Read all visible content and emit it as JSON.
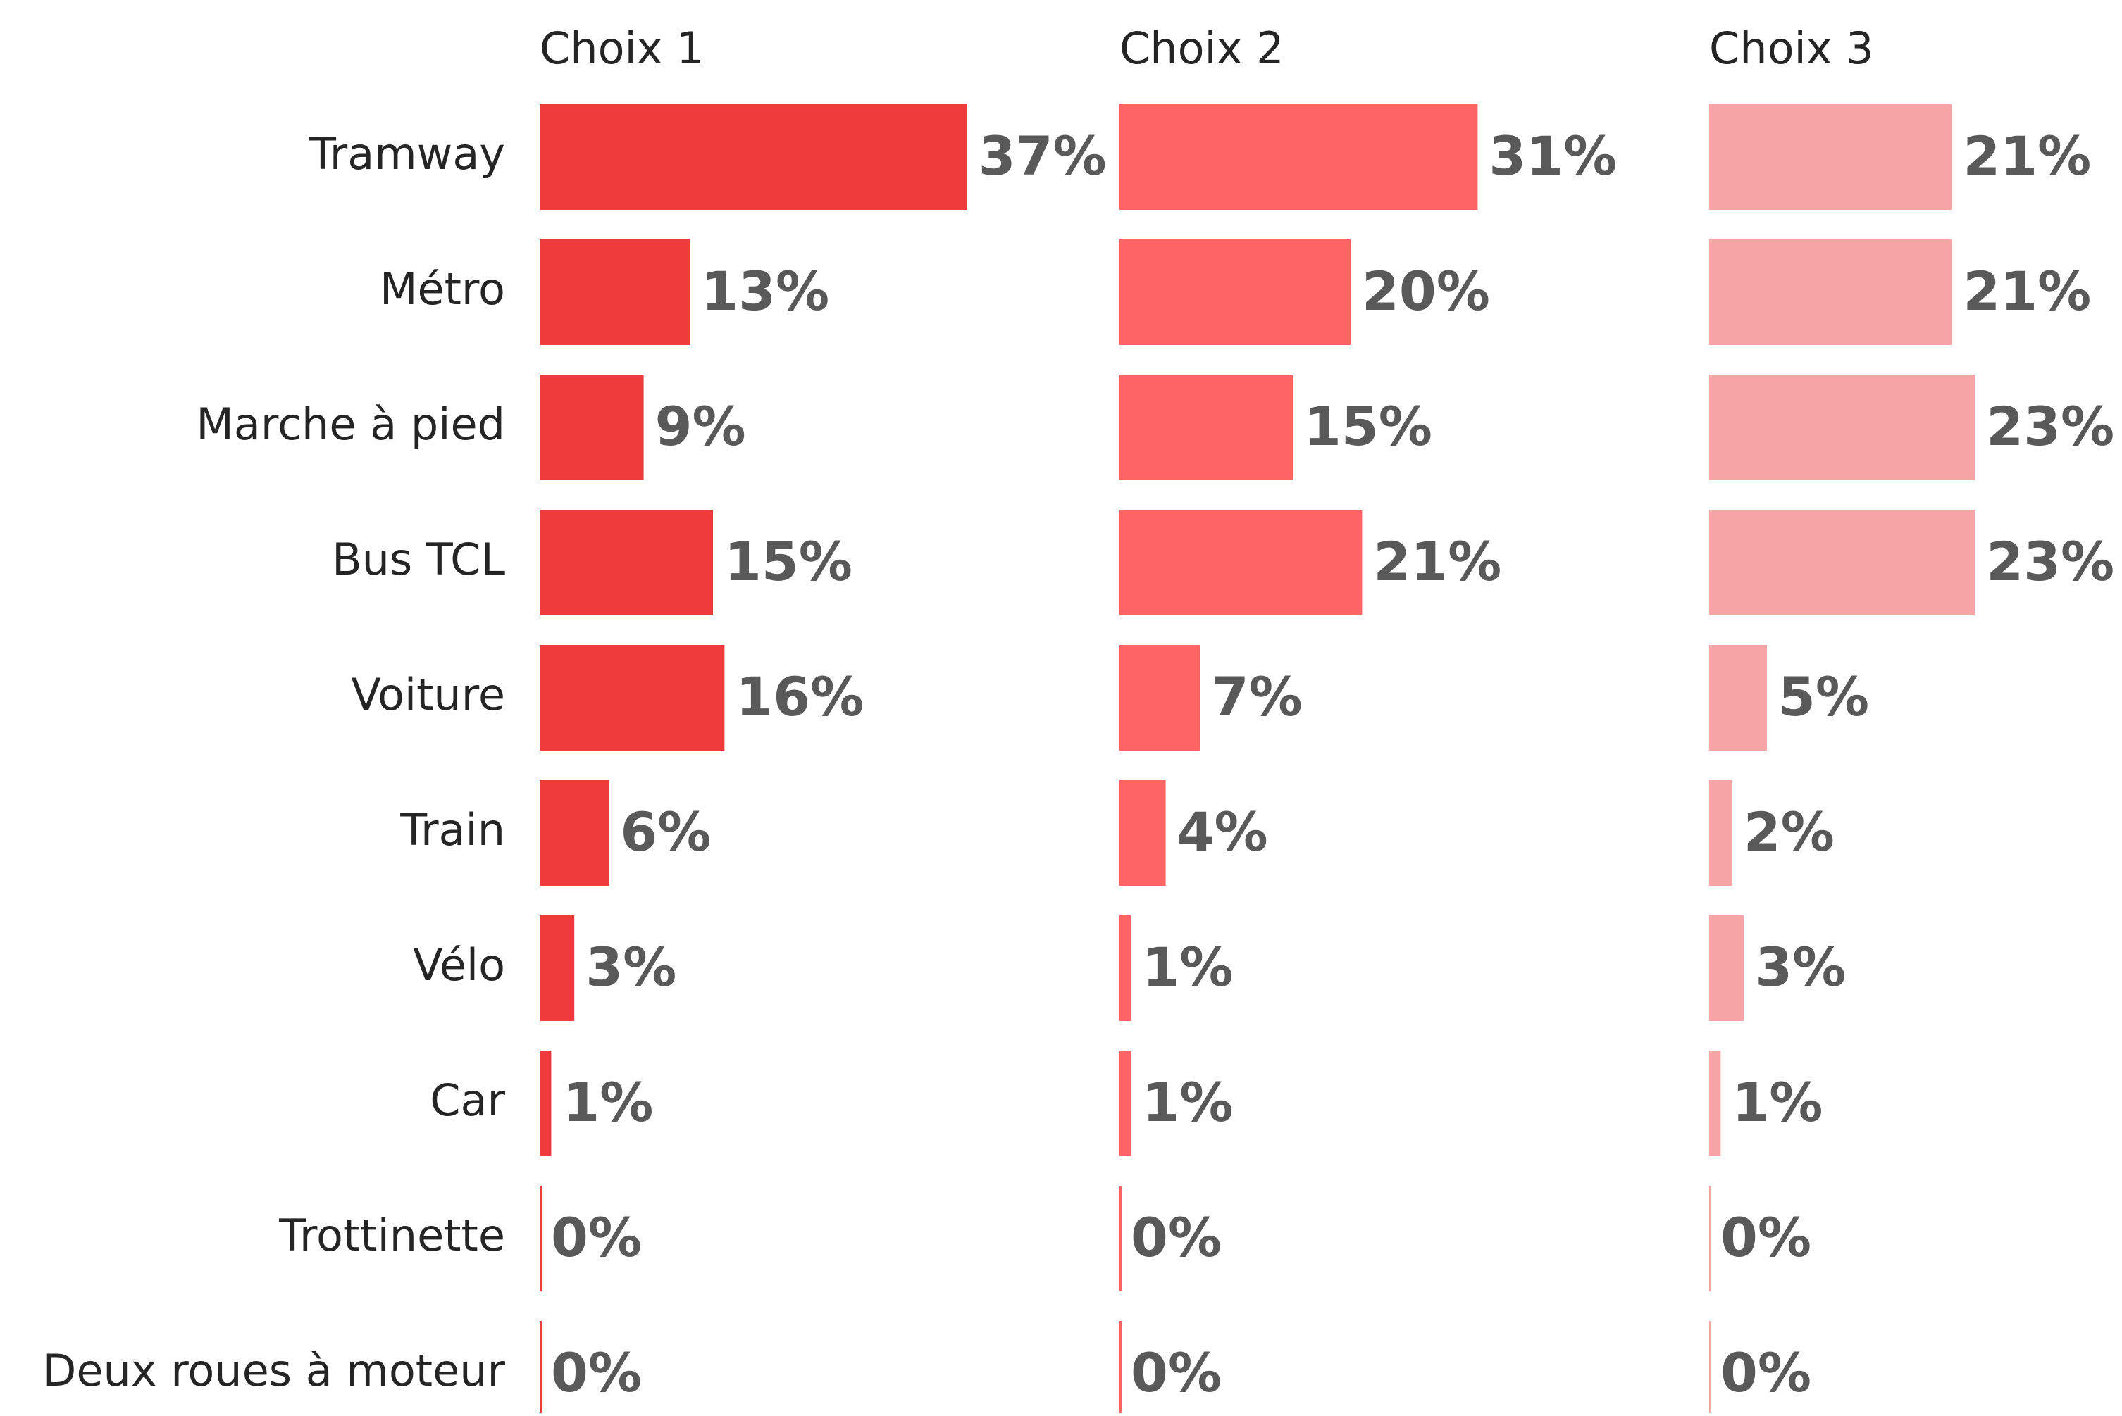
{
  "chart_data": {
    "type": "bar",
    "orientation": "horizontal",
    "categories": [
      "Tramway",
      "Métro",
      "Marche à pied",
      "Bus TCL",
      "Voiture",
      "Train",
      "Vélo",
      "Car",
      "Trottinette",
      "Deux roues à moteur"
    ],
    "series": [
      {
        "name": "Choix 1",
        "color": "#ef3b3b",
        "values": [
          37,
          13,
          9,
          15,
          16,
          6,
          3,
          1,
          0,
          0
        ],
        "value_labels": [
          "37%",
          "13%",
          "9%",
          "15%",
          "16%",
          "6%",
          "3%",
          "1%",
          "0%",
          "0%"
        ]
      },
      {
        "name": "Choix 2",
        "color": "#ff6464",
        "values": [
          31,
          20,
          15,
          21,
          7,
          4,
          1,
          1,
          0,
          0
        ],
        "value_labels": [
          "31%",
          "20%",
          "15%",
          "21%",
          "7%",
          "4%",
          "1%",
          "1%",
          "0%",
          "0%"
        ]
      },
      {
        "name": "Choix 3",
        "color": "#f5a5a5",
        "values": [
          21,
          21,
          23,
          23,
          5,
          2,
          3,
          1,
          0,
          0
        ],
        "value_labels": [
          "21%",
          "21%",
          "23%",
          "23%",
          "5%",
          "2%",
          "3%",
          "1%",
          "0%",
          "0%"
        ]
      }
    ]
  }
}
